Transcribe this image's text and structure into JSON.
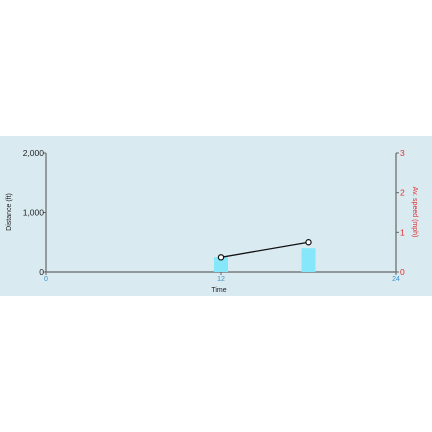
{
  "chart_data": {
    "type": "bar+line",
    "xlabel": "Time",
    "ylabel_left": "Distance (ft)",
    "ylabel_right": "Av. speed (mph)",
    "xlim": [
      0,
      24
    ],
    "ylim_left": [
      0,
      2000
    ],
    "ylim_right": [
      0,
      3
    ],
    "x_ticks": [
      "0",
      "12",
      "24"
    ],
    "x_tick_values": [
      0,
      12,
      24
    ],
    "y_left_ticks": [
      "0",
      "1,000",
      "2,000"
    ],
    "y_left_tick_values": [
      0,
      1000,
      2000
    ],
    "y_right_ticks": [
      "0",
      "1",
      "2",
      "3"
    ],
    "y_right_tick_values": [
      0,
      1,
      2,
      3
    ],
    "grid": false,
    "bars": {
      "axis": "left",
      "color": "#86e6fa",
      "x": [
        12,
        18
      ],
      "values": [
        250,
        400
      ]
    },
    "line": {
      "axis": "right",
      "color": "#111111",
      "x": [
        12,
        18
      ],
      "values": [
        0.37,
        0.75
      ]
    },
    "colors": {
      "panel_background": "#daeaf1",
      "axis_line": "#666666",
      "right_axis": "#e03030",
      "x_tick_labels": "#3a93c8"
    }
  }
}
